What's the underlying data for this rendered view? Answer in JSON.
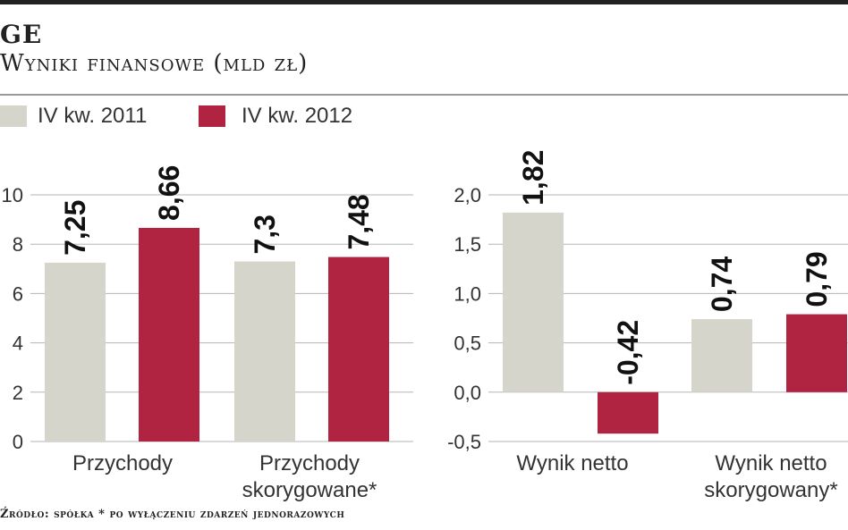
{
  "header": {
    "title": "GE",
    "subtitle": "Wyniki finansowe (mld zł)"
  },
  "legend": [
    {
      "label": "IV kw. 2011",
      "color": "#d6d5cc"
    },
    {
      "label": "IV kw. 2012",
      "color": "#b02442"
    }
  ],
  "footer": {
    "source": "Źródło: spółka * po wyłączeniu zdarzeń jednorazowych"
  },
  "chart_data": [
    {
      "type": "bar",
      "categories": [
        [
          "Przychody"
        ],
        [
          "Przychody",
          "skorygowane*"
        ]
      ],
      "series": [
        {
          "name": "IV kw. 2011",
          "values": [
            7.25,
            7.3
          ],
          "labels": [
            "7,25",
            "7,3"
          ]
        },
        {
          "name": "IV kw. 2012",
          "values": [
            8.66,
            7.48
          ],
          "labels": [
            "8,66",
            "7,48"
          ]
        }
      ],
      "ylim": [
        0,
        10
      ],
      "yticks": [
        0,
        2,
        4,
        6,
        8,
        10
      ],
      "ytick_labels": [
        "0",
        "2",
        "4",
        "6",
        "8",
        "10"
      ],
      "grid": true
    },
    {
      "type": "bar",
      "categories": [
        [
          "Wynik netto"
        ],
        [
          "Wynik netto",
          "skorygowany*"
        ]
      ],
      "series": [
        {
          "name": "IV kw. 2011",
          "values": [
            1.82,
            0.74
          ],
          "labels": [
            "1,82",
            "0,74"
          ]
        },
        {
          "name": "IV kw. 2012",
          "values": [
            -0.42,
            0.79
          ],
          "labels": [
            "-0,42",
            "0,79"
          ]
        }
      ],
      "ylim": [
        -0.5,
        2.0
      ],
      "yticks": [
        -0.5,
        0.0,
        0.5,
        1.0,
        1.5,
        2.0
      ],
      "ytick_labels": [
        "-0,5",
        "0,0",
        "0,5",
        "1,0",
        "1,5",
        "2,0"
      ],
      "grid": true
    }
  ]
}
